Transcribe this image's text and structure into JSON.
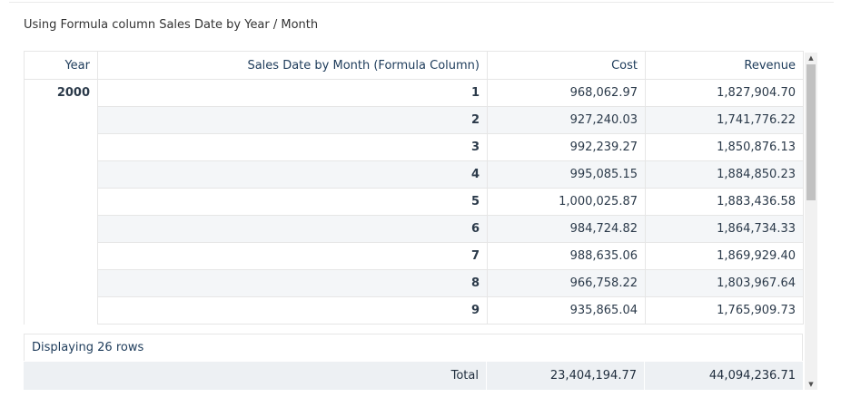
{
  "title": "Using Formula column Sales Date by Year / Month",
  "columns": {
    "year": "Year",
    "month": "Sales Date by Month (Formula Column)",
    "cost": "Cost",
    "revenue": "Revenue"
  },
  "year_value": "2000",
  "rows": [
    {
      "month": "1",
      "cost": "968,062.97",
      "revenue": "1,827,904.70"
    },
    {
      "month": "2",
      "cost": "927,240.03",
      "revenue": "1,741,776.22"
    },
    {
      "month": "3",
      "cost": "992,239.27",
      "revenue": "1,850,876.13"
    },
    {
      "month": "4",
      "cost": "995,085.15",
      "revenue": "1,884,850.23"
    },
    {
      "month": "5",
      "cost": "1,000,025.87",
      "revenue": "1,883,436.58"
    },
    {
      "month": "6",
      "cost": "984,724.82",
      "revenue": "1,864,734.33"
    },
    {
      "month": "7",
      "cost": "988,635.06",
      "revenue": "1,869,929.40"
    },
    {
      "month": "8",
      "cost": "966,758.22",
      "revenue": "1,803,967.64"
    },
    {
      "month": "9",
      "cost": "935,865.04",
      "revenue": "1,765,909.73"
    }
  ],
  "footer": {
    "row_count": "Displaying 26 rows",
    "total_label": "Total",
    "total_cost": "23,404,194.77",
    "total_revenue": "44,094,236.71"
  },
  "icons": {
    "scroll_up": "triangle-up",
    "scroll_down": "triangle-down"
  }
}
